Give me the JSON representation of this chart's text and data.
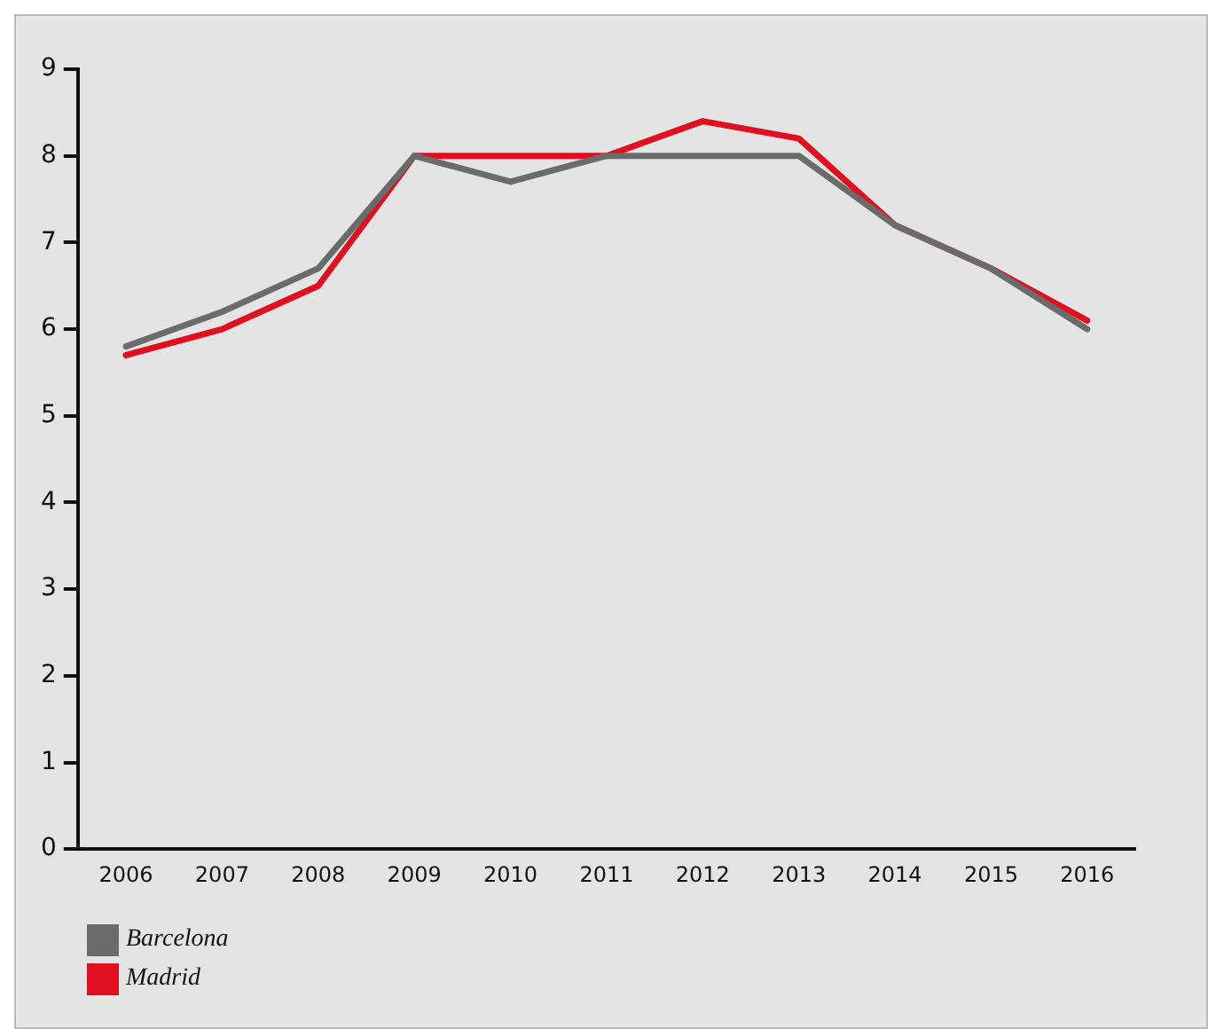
{
  "chart_data": {
    "type": "line",
    "categories": [
      "2006",
      "2007",
      "2008",
      "2009",
      "2010",
      "2011",
      "2012",
      "2013",
      "2014",
      "2015",
      "2016"
    ],
    "series": [
      {
        "name": "Barcelona",
        "color": "#6b6b6b",
        "values": [
          5.8,
          6.2,
          6.7,
          8.0,
          7.7,
          8.0,
          8.0,
          8.0,
          7.2,
          6.7,
          6.0
        ]
      },
      {
        "name": "Madrid",
        "color": "#e01020",
        "values": [
          5.7,
          6.0,
          6.5,
          8.0,
          8.0,
          8.0,
          8.4,
          8.2,
          7.2,
          6.7,
          6.1
        ]
      }
    ],
    "ylim": [
      0,
      9
    ],
    "yticks": [
      0,
      1,
      2,
      3,
      4,
      5,
      6,
      7,
      8,
      9
    ],
    "grid": false,
    "legend": "bottom left",
    "marker": "none",
    "line_style": "solid"
  }
}
